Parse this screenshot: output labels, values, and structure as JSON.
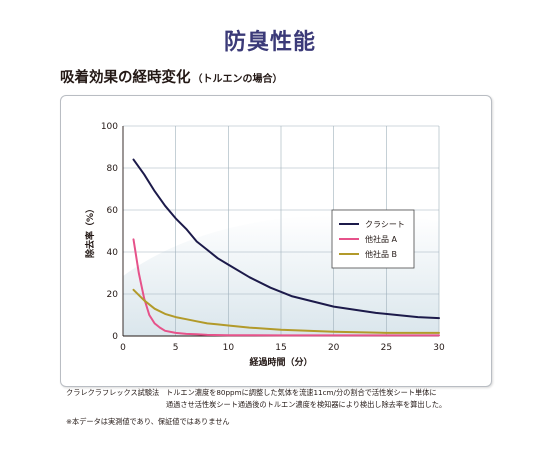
{
  "header": {
    "title": "防臭性能",
    "subtitle": "吸着効果の経時変化",
    "subtitle_note": "（トルエンの場合）"
  },
  "chart_data": {
    "type": "line",
    "xlabel": "経過時間（分）",
    "ylabel": "除去率（%）",
    "xlim": [
      0,
      30
    ],
    "ylim": [
      0,
      100
    ],
    "xticks": [
      "0",
      "5",
      "10",
      "15",
      "20",
      "25",
      "30"
    ],
    "yticks": [
      "0",
      "20",
      "40",
      "60",
      "80",
      "100"
    ],
    "grid": true,
    "legend_position": "right",
    "series": [
      {
        "name": "クラシート",
        "color": "#1c1a4a",
        "x": [
          1,
          2,
          3,
          4,
          5,
          6,
          7,
          8,
          9,
          10,
          12,
          14,
          16,
          18,
          20,
          22,
          24,
          26,
          28,
          30
        ],
        "y": [
          84,
          77,
          69,
          62,
          56,
          51,
          45,
          41,
          37,
          34,
          28,
          23,
          19,
          16.5,
          14,
          12.5,
          11,
          10,
          9,
          8.5
        ]
      },
      {
        "name": "他社品 A",
        "color": "#e6528a",
        "x": [
          1,
          1.5,
          2,
          2.5,
          3,
          3.5,
          4,
          5,
          6,
          7,
          8,
          10,
          15,
          20,
          25,
          30
        ],
        "y": [
          46,
          30,
          18,
          10,
          6,
          4,
          2.5,
          1.5,
          1,
          0.8,
          0.5,
          0.4,
          0.3,
          0.3,
          0.3,
          0.3
        ]
      },
      {
        "name": "他社品 B",
        "color": "#b29a2a",
        "x": [
          1,
          2,
          3,
          4,
          5,
          6,
          7,
          8,
          9,
          10,
          12,
          15,
          20,
          25,
          30
        ],
        "y": [
          22,
          17,
          13,
          10.5,
          9,
          8,
          7,
          6,
          5.5,
          5,
          4,
          3,
          2,
          1.5,
          1.5
        ]
      }
    ]
  },
  "notes": {
    "method_label": "クラレクラフレックス試験法",
    "method_line1": "トルエン濃度を80ppmに調整した気体を流速11cm/分の割合で活性炭シート単体に",
    "method_line2": "通過させ活性炭シート通過後のトルエン濃度を検知器により検出し除去率を算出した。",
    "footnote": "※本データは実測値であり、保証値ではありません"
  }
}
